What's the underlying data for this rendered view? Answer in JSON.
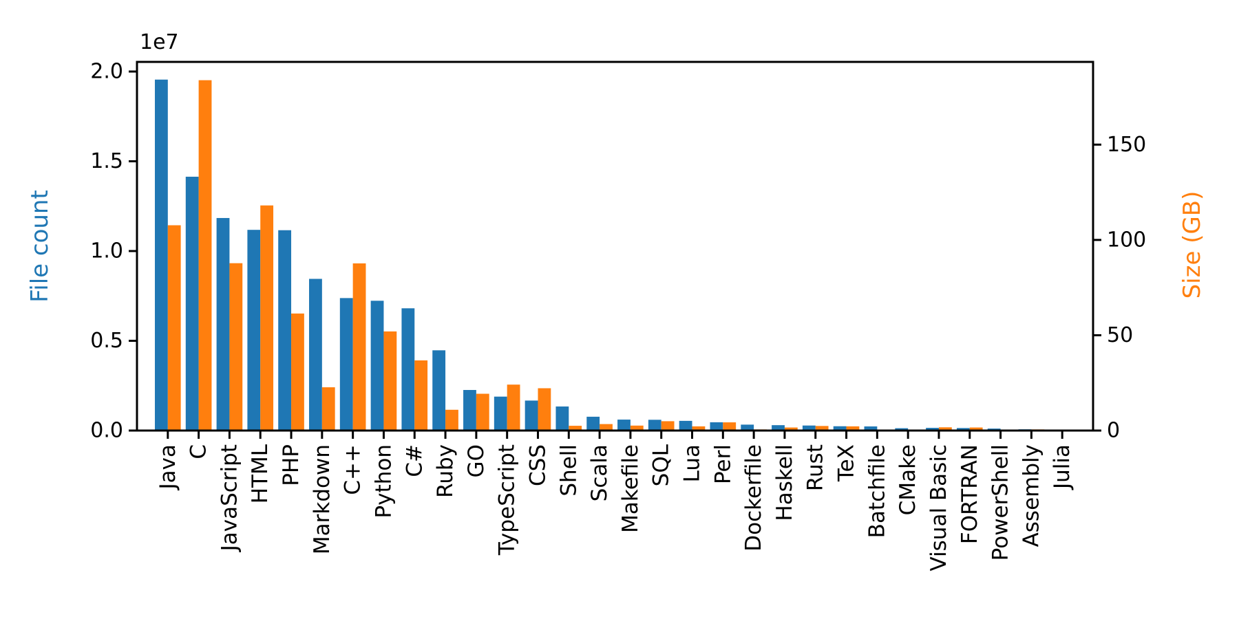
{
  "chart_data": {
    "type": "bar",
    "title": "",
    "xlabel": "",
    "grid": false,
    "legend": "none",
    "bar_orientation": "vertical",
    "categories": [
      "Java",
      "C",
      "JavaScript",
      "HTML",
      "PHP",
      "Markdown",
      "C++",
      "Python",
      "C#",
      "Ruby",
      "GO",
      "TypeScript",
      "CSS",
      "Shell",
      "Scala",
      "Makefile",
      "SQL",
      "Lua",
      "Perl",
      "Dockerfile",
      "Haskell",
      "Rust",
      "TeX",
      "Batchfile",
      "CMake",
      "Visual Basic",
      "FORTRAN",
      "PowerShell",
      "Assembly",
      "Julia"
    ],
    "series": [
      {
        "name": "File count",
        "axis": "left",
        "color": "#1f77b4",
        "values": [
          19550000,
          14140000,
          11840000,
          11180000,
          11160000,
          8450000,
          7380000,
          7230000,
          6810000,
          4470000,
          2260000,
          1890000,
          1670000,
          1340000,
          770000,
          610000,
          600000,
          540000,
          460000,
          330000,
          300000,
          280000,
          240000,
          230000,
          130000,
          150000,
          140000,
          110000,
          70000,
          30000
        ]
      },
      {
        "name": "Size (GB)",
        "axis": "right",
        "color": "#ff7f0e",
        "values": [
          107.7,
          183.8,
          87.8,
          118.1,
          61.4,
          22.7,
          87.7,
          52.0,
          36.8,
          10.9,
          19.3,
          24.1,
          22.2,
          2.5,
          3.4,
          2.6,
          4.9,
          2.2,
          4.3,
          0.6,
          1.6,
          2.4,
          2.2,
          0.15,
          0.12,
          1.7,
          1.6,
          0.2,
          0.6,
          0.25
        ]
      }
    ],
    "left_axis": {
      "label": "File count",
      "color": "#1f77b4",
      "offset_text": "1e7",
      "tick_values": [
        0,
        5000000,
        10000000,
        15000000,
        20000000
      ],
      "tick_labels": [
        "0.0",
        "0.5",
        "1.0",
        "1.5",
        "2.0"
      ],
      "ylim": [
        0,
        20536000
      ]
    },
    "right_axis": {
      "label": "Size (GB)",
      "color": "#ff7f0e",
      "tick_values": [
        0,
        50,
        100,
        150
      ],
      "tick_labels": [
        "0",
        "50",
        "100",
        "150"
      ],
      "ylim": [
        0,
        193.4
      ]
    },
    "axis_color": "#000000",
    "background": "#ffffff"
  }
}
